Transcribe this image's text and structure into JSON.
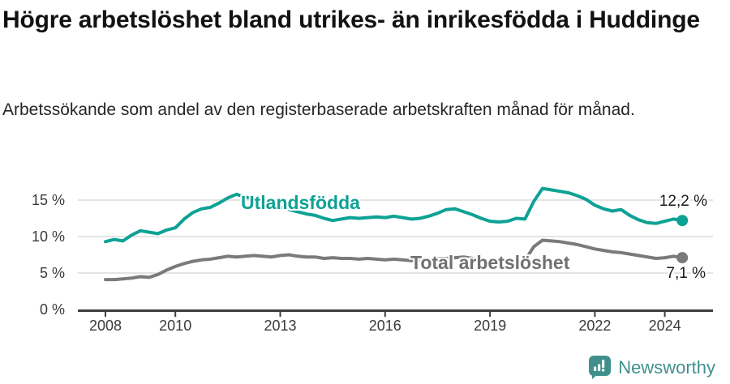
{
  "header": {
    "title": "Högre arbetslöshet bland utrikes- än inrikesfödda i Huddinge",
    "subtitle": "Arbetssökande som andel av den registerbaserade arbetskraften månad för månad."
  },
  "chart_data": {
    "type": "line",
    "unit": "%",
    "grid": true,
    "xlim": [
      2008,
      2025.4
    ],
    "ylim": [
      0,
      17.5
    ],
    "x_start": 2008.0,
    "x_step": 0.25,
    "x_ticks": [
      {
        "year": 2008,
        "label": "2008"
      },
      {
        "year": 2010,
        "label": "2010"
      },
      {
        "year": 2013,
        "label": "2013"
      },
      {
        "year": 2016,
        "label": "2016"
      },
      {
        "year": 2019,
        "label": "2019"
      },
      {
        "year": 2022,
        "label": "2022"
      },
      {
        "year": 2024,
        "label": "2024"
      }
    ],
    "y_ticks": [
      {
        "value": 0,
        "label": "0 %"
      },
      {
        "value": 5,
        "label": "5 %"
      },
      {
        "value": 10,
        "label": "10 %"
      },
      {
        "value": 15,
        "label": "15 %"
      }
    ],
    "series": [
      {
        "name": "Utlandsfödda",
        "color": "#0da294",
        "end_label": "12,2 %",
        "end_value": 12.2,
        "values": [
          9.3,
          9.6,
          9.4,
          10.2,
          10.8,
          10.6,
          10.4,
          10.9,
          11.2,
          12.4,
          13.3,
          13.8,
          14.0,
          14.6,
          15.3,
          15.8,
          15.4,
          15.2,
          15.0,
          14.6,
          14.1,
          13.7,
          13.4,
          13.1,
          12.9,
          12.5,
          12.2,
          12.4,
          12.6,
          12.5,
          12.6,
          12.7,
          12.6,
          12.8,
          12.6,
          12.4,
          12.5,
          12.8,
          13.2,
          13.7,
          13.8,
          13.4,
          13.0,
          12.5,
          12.1,
          12.0,
          12.1,
          12.5,
          12.4,
          14.8,
          16.6,
          16.4,
          16.2,
          16.0,
          15.6,
          15.1,
          14.3,
          13.8,
          13.5,
          13.7,
          12.9,
          12.3,
          11.9,
          11.8,
          12.1,
          12.4,
          12.2
        ]
      },
      {
        "name": "Total arbetslöshet",
        "color": "#7a7a7a",
        "end_label": "7,1 %",
        "end_value": 7.1,
        "values": [
          4.1,
          4.1,
          4.2,
          4.3,
          4.5,
          4.4,
          4.8,
          5.4,
          5.9,
          6.3,
          6.6,
          6.8,
          6.9,
          7.1,
          7.3,
          7.2,
          7.3,
          7.4,
          7.3,
          7.2,
          7.4,
          7.5,
          7.3,
          7.2,
          7.2,
          7.0,
          7.1,
          7.0,
          7.0,
          6.9,
          7.0,
          6.9,
          6.8,
          6.9,
          6.8,
          6.7,
          6.8,
          6.9,
          7.0,
          7.0,
          7.1,
          7.2,
          7.0,
          6.8,
          6.6,
          6.4,
          6.3,
          6.5,
          6.7,
          8.6,
          9.5,
          9.4,
          9.3,
          9.1,
          8.9,
          8.6,
          8.3,
          8.1,
          7.9,
          7.8,
          7.6,
          7.4,
          7.2,
          7.0,
          7.1,
          7.3,
          7.1
        ]
      }
    ]
  },
  "footer": {
    "brand": "Newsworthy",
    "logo_icon": "newsworthy-chart-speech-bubble-icon",
    "brand_color": "#3f908c"
  }
}
